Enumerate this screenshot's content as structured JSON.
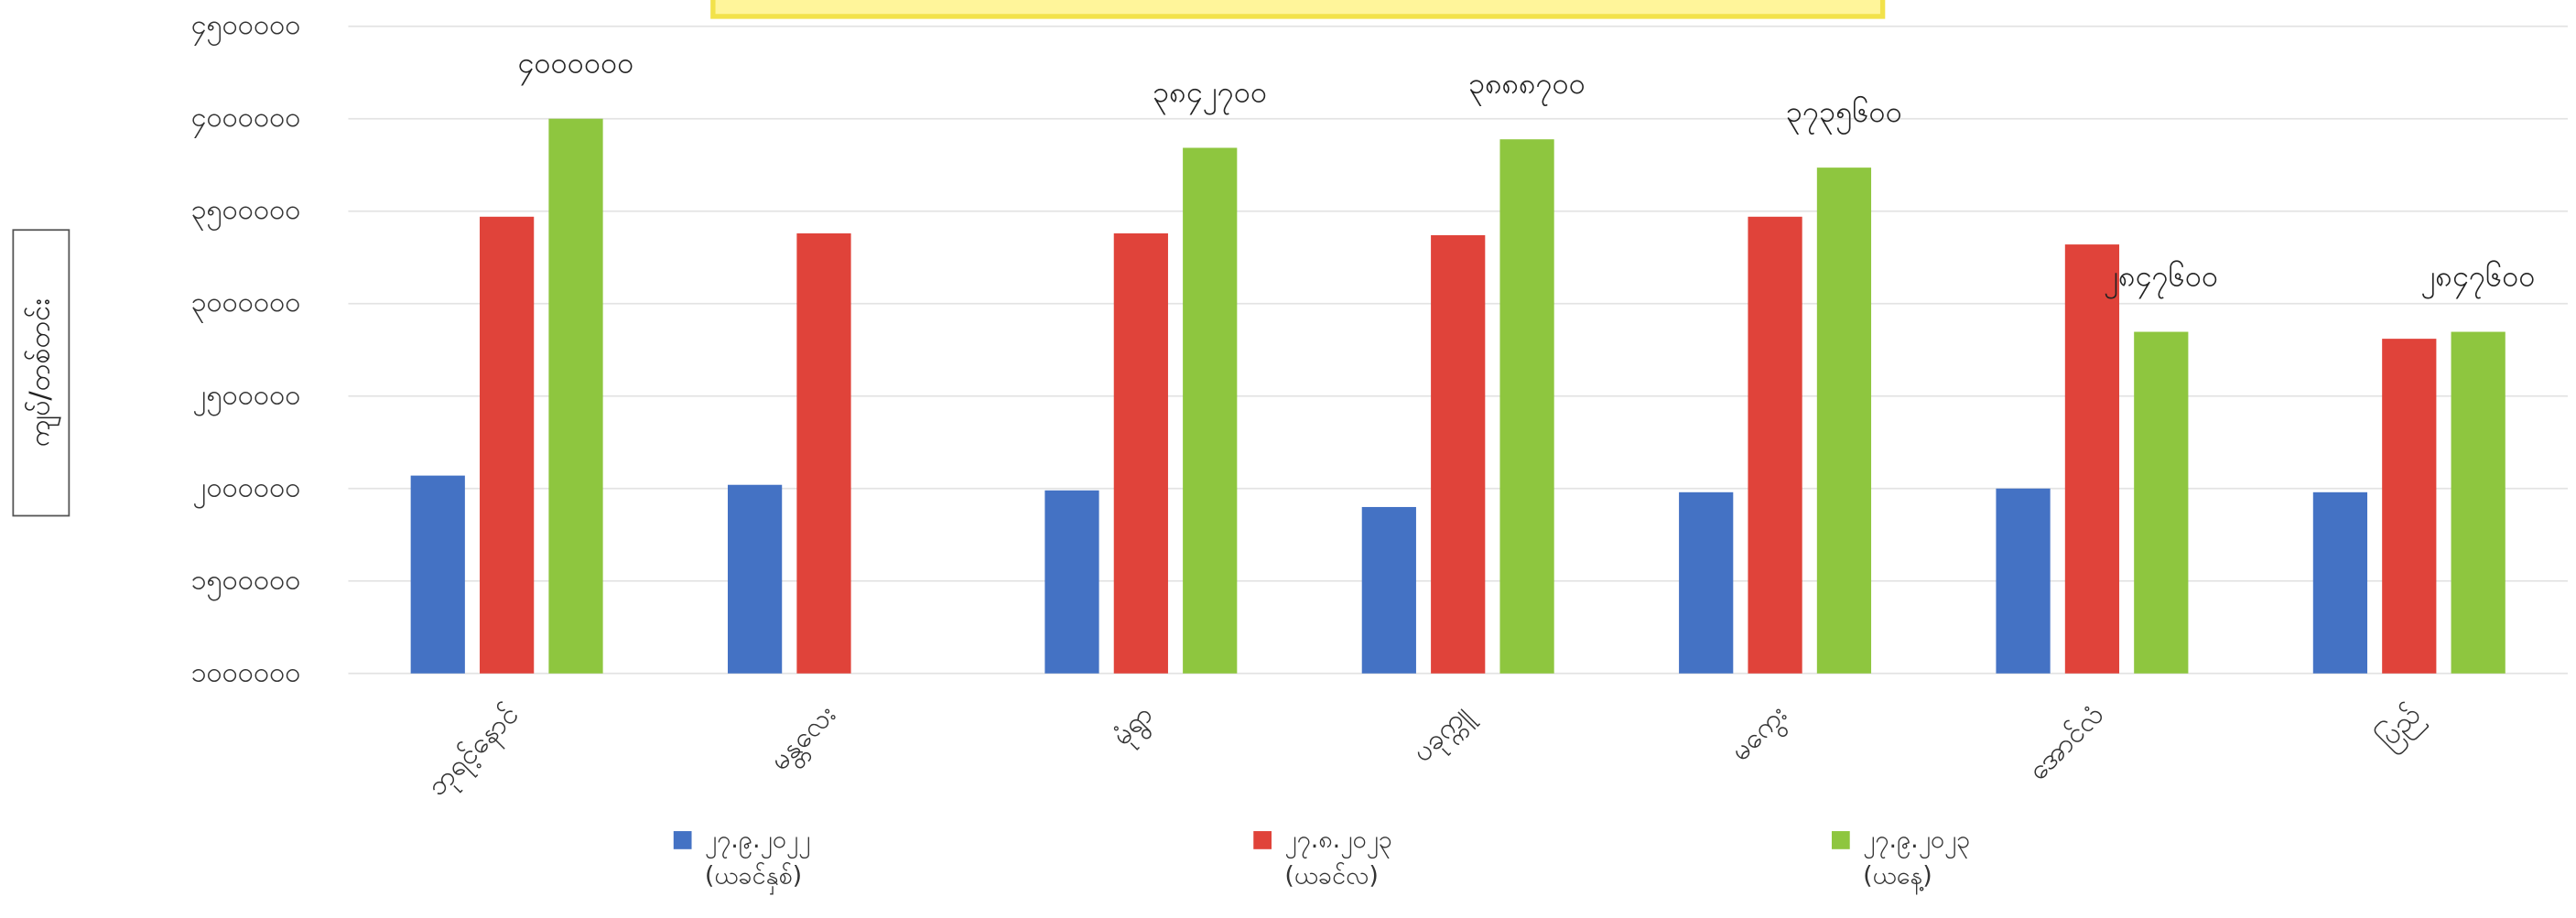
{
  "chart_data": {
    "type": "bar",
    "y_label": "ကျပ်/တစ်တင်း",
    "categories": [
      "ဘုရင့်နောင်",
      "မန္တလေး",
      "မုံရွာ",
      "ပခုက္ကူ",
      "မကွေး",
      "အောင်လံ",
      "ပြည်"
    ],
    "series": [
      {
        "name": "၂၇.၉.၂၀၂၂\n(ယခင်နှစ်)",
        "color": "#4472c4",
        "values": [
          2070000,
          2020000,
          1990000,
          1900000,
          1980000,
          2000000,
          1980000
        ]
      },
      {
        "name": "၂၇.၈.၂၀၂၃\n(ယခင်လ)",
        "color": "#e0433a",
        "values": [
          3470000,
          3380000,
          3380000,
          3370000,
          3470000,
          3320000,
          2810000
        ]
      },
      {
        "name": "၂၇.၉.၂၀၂၃\n(ယနေ့)",
        "color": "#8ec63f",
        "values": [
          4000000,
          null,
          3842700,
          3888700,
          3735600,
          2847600,
          2847600
        ],
        "value_labels": [
          "၄၀၀၀၀၀၀",
          null,
          "၃၈၄၂၇၀၀",
          "၃၈၈၈၇၀၀",
          "၃၇၃၅၆၀၀",
          "၂၈၄၇၆၀၀",
          "၂၈၄၇၆၀၀"
        ]
      }
    ],
    "ylim": [
      1000000,
      4500000
    ],
    "yticks": [
      {
        "value": 1000000,
        "label": "၁၀၀၀၀၀၀"
      },
      {
        "value": 1500000,
        "label": "၁၅၀၀၀၀၀"
      },
      {
        "value": 2000000,
        "label": "၂၀၀၀၀၀၀"
      },
      {
        "value": 2500000,
        "label": "၂၅၀၀၀၀၀"
      },
      {
        "value": 3000000,
        "label": "၃၀၀၀၀၀၀"
      },
      {
        "value": 3500000,
        "label": "၃၅၀၀၀၀၀"
      },
      {
        "value": 4000000,
        "label": "၄၀၀၀၀၀၀"
      },
      {
        "value": 4500000,
        "label": "၄၅၀၀၀၀၀"
      }
    ],
    "grid": true
  }
}
